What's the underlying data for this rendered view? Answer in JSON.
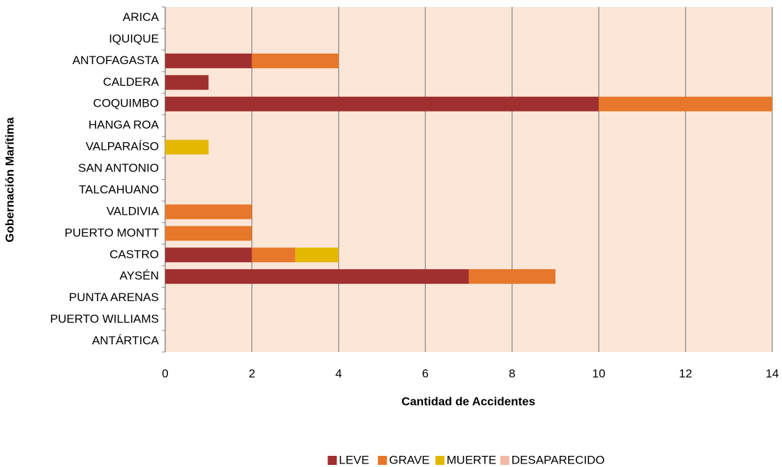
{
  "chart_data": {
    "type": "bar",
    "orientation": "horizontal",
    "stacked": true,
    "x_label": "Cantidad de Accidentes",
    "y_label": "Gobernación Marítima",
    "categories": [
      "ARICA",
      "IQUIQUE",
      "ANTOFAGASTA",
      "CALDERA",
      "COQUIMBO",
      "HANGA ROA",
      "VALPARAÍSO",
      "SAN ANTONIO",
      "TALCAHUANO",
      "VALDIVIA",
      "PUERTO MONTT",
      "CASTRO",
      "AYSÉN",
      "PUNTA ARENAS",
      "PUERTO WILLIAMS",
      "ANTÁRTICA"
    ],
    "series": [
      {
        "name": "LEVE",
        "color": "#a0302f",
        "values": [
          0,
          0,
          2,
          1,
          10,
          0,
          0,
          0,
          0,
          0,
          0,
          2,
          7,
          0,
          0,
          0
        ]
      },
      {
        "name": "GRAVE",
        "color": "#e7772a",
        "values": [
          0,
          0,
          2,
          0,
          4,
          0,
          0,
          0,
          0,
          2,
          2,
          1,
          2,
          0,
          0,
          0
        ]
      },
      {
        "name": "MUERTE",
        "color": "#e4b700",
        "values": [
          0,
          0,
          0,
          0,
          0,
          0,
          1,
          0,
          0,
          0,
          0,
          1,
          0,
          0,
          0,
          0
        ]
      },
      {
        "name": "DESAPARECIDO",
        "color": "#f2b9a3",
        "values": [
          0,
          0,
          0,
          0,
          0,
          0,
          0,
          0,
          0,
          0,
          0,
          0,
          0,
          0,
          0,
          0
        ]
      }
    ],
    "xlim": [
      0,
      14
    ],
    "xticks": [
      0,
      2,
      4,
      6,
      8,
      10,
      12,
      14
    ],
    "grid": true,
    "legend": "bottom"
  }
}
